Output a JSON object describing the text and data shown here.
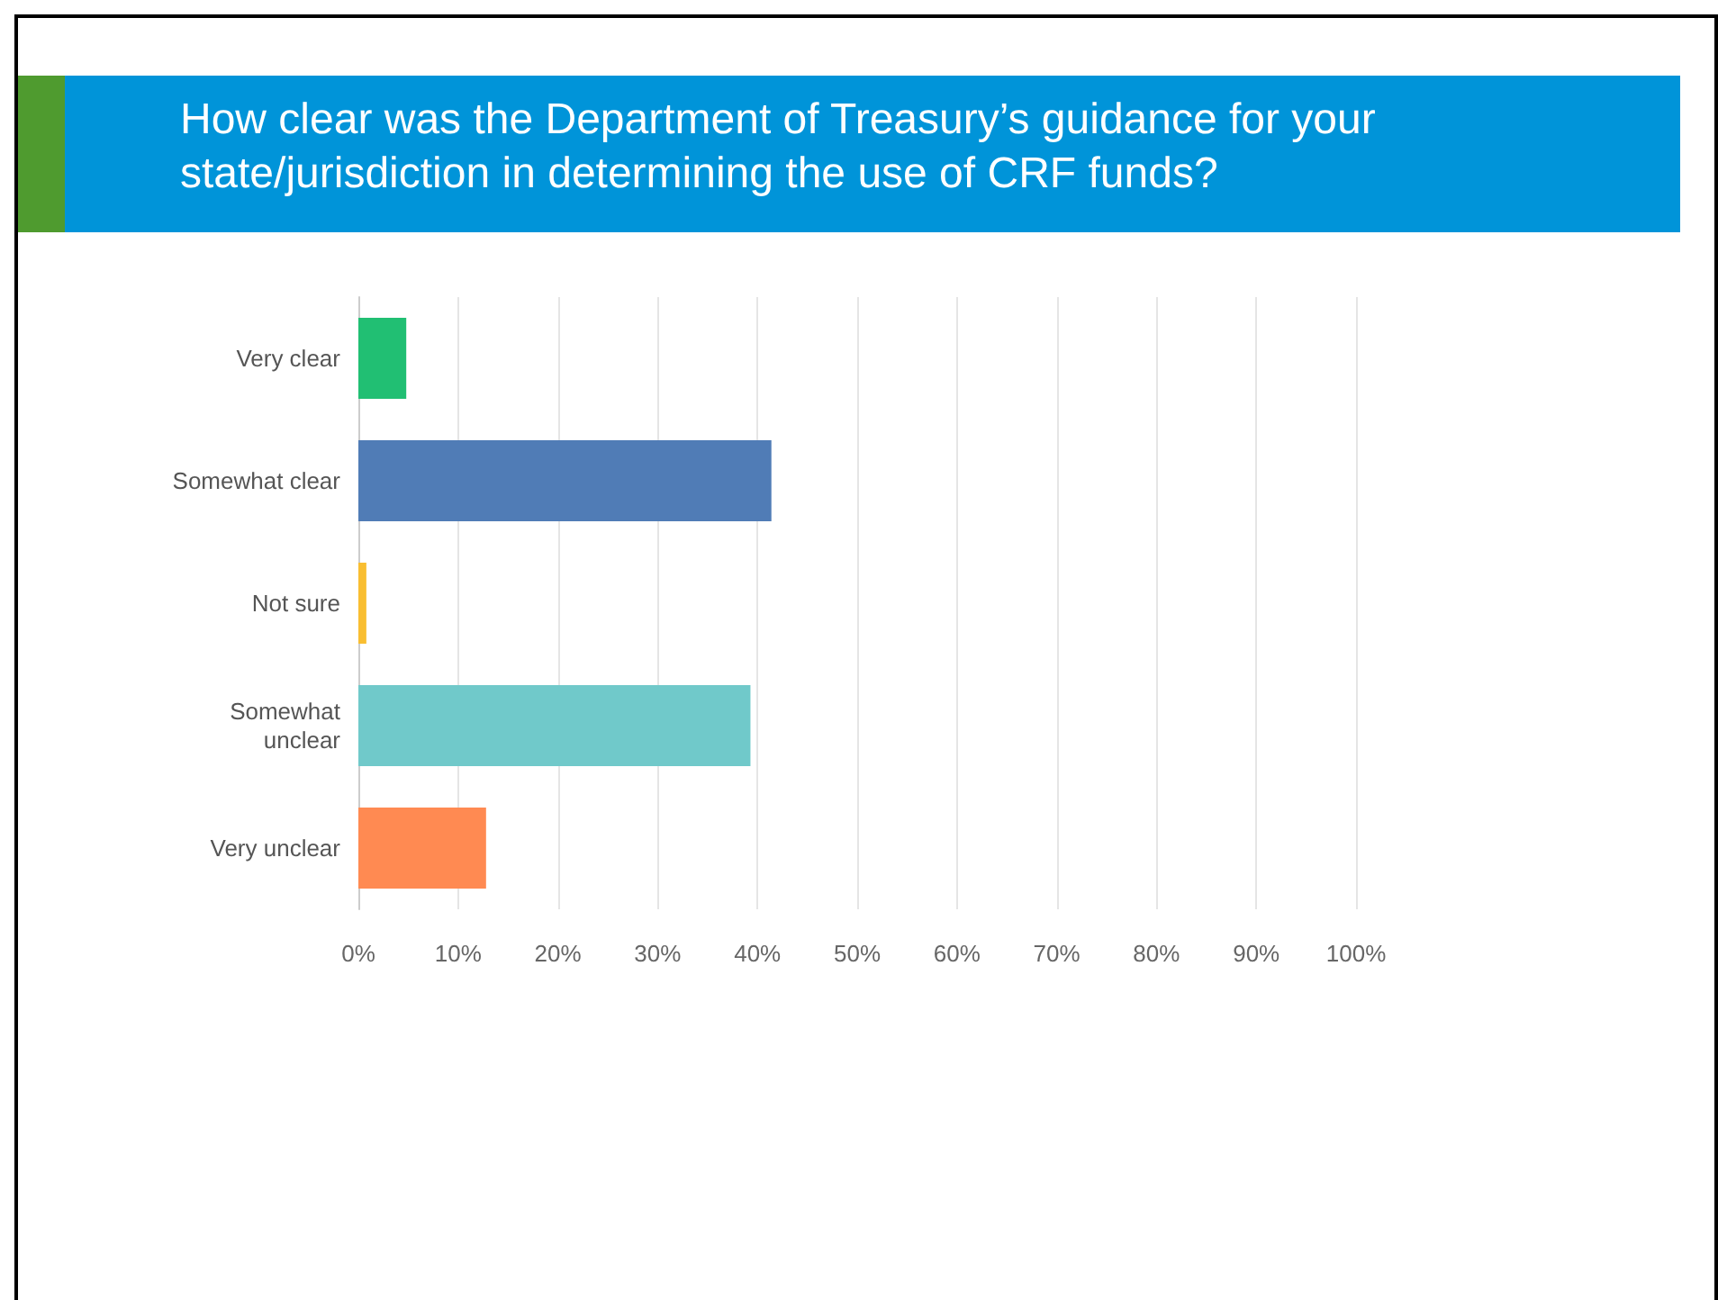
{
  "chart_data": {
    "type": "bar",
    "orientation": "horizontal",
    "title": "How clear was the Department of Treasury’s guidance for your state/jurisdiction in determining the use of CRF funds?",
    "categories": [
      "Very clear",
      "Somewhat clear",
      "Not sure",
      "Somewhat\nunclear",
      "Very unclear"
    ],
    "values": [
      4.8,
      41.4,
      0.8,
      39.3,
      12.8
    ],
    "colors": [
      "#21bf73",
      "#507cb6",
      "#f9be31",
      "#70c9ca",
      "#ff8a52"
    ],
    "xlim": [
      0,
      100
    ],
    "xticks": [
      {
        "value": 0,
        "label": "0%"
      },
      {
        "value": 10,
        "label": "10%"
      },
      {
        "value": 20,
        "label": "20%"
      },
      {
        "value": 30,
        "label": "30%"
      },
      {
        "value": 40,
        "label": "40%"
      },
      {
        "value": 50,
        "label": "50%"
      },
      {
        "value": 60,
        "label": "60%"
      },
      {
        "value": 70,
        "label": "70%"
      },
      {
        "value": 80,
        "label": "80%"
      },
      {
        "value": 90,
        "label": "90%"
      },
      {
        "value": 100,
        "label": "100%"
      }
    ],
    "grid": "x"
  }
}
